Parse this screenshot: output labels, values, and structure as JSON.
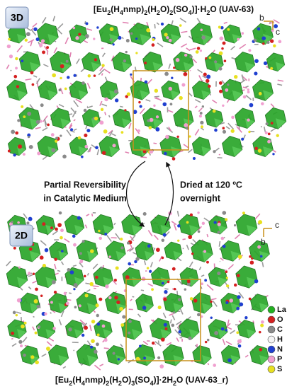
{
  "top": {
    "badge": "3D",
    "formula": [
      {
        "text": "[Eu"
      },
      {
        "text": "2",
        "sub": true
      },
      {
        "text": "(H"
      },
      {
        "text": "4",
        "sub": true
      },
      {
        "text": "nmp)"
      },
      {
        "text": "2",
        "sub": true
      },
      {
        "text": "(H"
      },
      {
        "text": "2",
        "sub": true
      },
      {
        "text": "O)"
      },
      {
        "text": "2",
        "sub": true
      },
      {
        "text": "(SO"
      },
      {
        "text": "4",
        "sub": true
      },
      {
        "text": ")]·H"
      },
      {
        "text": "2",
        "sub": true
      },
      {
        "text": "O (UAV-63)"
      }
    ],
    "axis_b": "b",
    "axis_c": "c"
  },
  "transition": {
    "left": [
      "Partial Reversibility",
      "in Catalytic Medium"
    ],
    "right": [
      "Dried at 120 ºC",
      "overnight"
    ]
  },
  "bottom": {
    "badge": "2D",
    "formula": [
      {
        "text": "[Eu"
      },
      {
        "text": "2",
        "sub": true
      },
      {
        "text": "(H"
      },
      {
        "text": "4",
        "sub": true
      },
      {
        "text": "nmp)"
      },
      {
        "text": "2",
        "sub": true
      },
      {
        "text": "(H"
      },
      {
        "text": "2",
        "sub": true
      },
      {
        "text": "O)"
      },
      {
        "text": "3",
        "sub": true
      },
      {
        "text": "(SO"
      },
      {
        "text": "4",
        "sub": true
      },
      {
        "text": ")]·2H"
      },
      {
        "text": "2",
        "sub": true
      },
      {
        "text": "O (UAV-63_r)"
      }
    ],
    "axis_b": "b",
    "axis_c": "c"
  },
  "legend": [
    {
      "name": "La",
      "color": "#22b020"
    },
    {
      "name": "O",
      "color": "#d42020"
    },
    {
      "name": "C",
      "color": "#8a8a8a"
    },
    {
      "name": "H",
      "color": "#f4f4f4"
    },
    {
      "name": "N",
      "color": "#2040d0"
    },
    {
      "name": "P",
      "color": "#f0a0d0"
    },
    {
      "name": "S",
      "color": "#e8e020"
    }
  ]
}
